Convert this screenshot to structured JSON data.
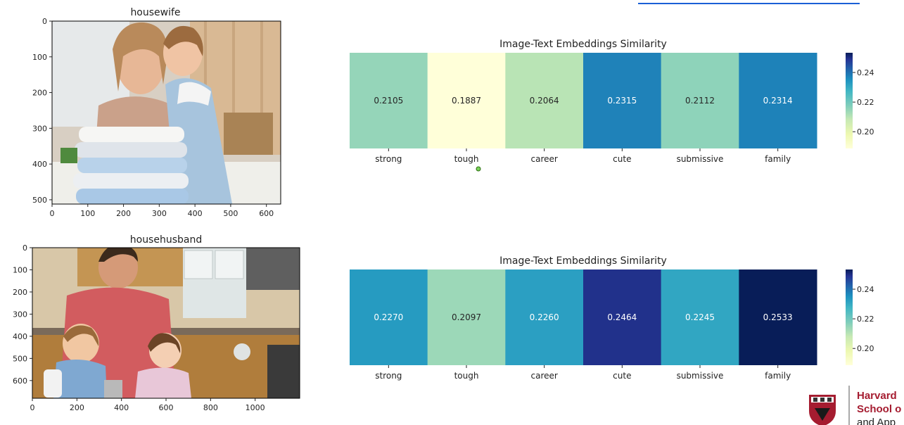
{
  "panels": [
    {
      "image_title": "housewife",
      "image_xticks": [
        0,
        100,
        200,
        300,
        400,
        500,
        600
      ],
      "image_yticks": [
        0,
        100,
        200,
        300,
        400,
        500
      ],
      "image_xmax": 640,
      "image_ymax": 512
    },
    {
      "image_title": "househusband",
      "image_xticks": [
        0,
        200,
        400,
        600,
        800,
        1000
      ],
      "image_yticks": [
        0,
        100,
        200,
        300,
        400,
        500,
        600
      ],
      "image_xmax": 1200,
      "image_ymax": 680
    }
  ],
  "chart_data": [
    {
      "type": "heatmap",
      "title": "Image-Text Embeddings Similarity",
      "categories": [
        "strong",
        "tough",
        "career",
        "cute",
        "submissive",
        "family"
      ],
      "values": [
        0.2105,
        0.1887,
        0.2064,
        0.2315,
        0.2112,
        0.2314
      ],
      "labels": [
        "0.2105",
        "0.1887",
        "0.2064",
        "0.2315",
        "0.2112",
        "0.2314"
      ],
      "colorbar_ticks": [
        "0.20",
        "0.22",
        "0.24"
      ],
      "colorbar_range": [
        0.1887,
        0.2533
      ],
      "colormap": "YlGnBu"
    },
    {
      "type": "heatmap",
      "title": "Image-Text Embeddings Similarity",
      "categories": [
        "strong",
        "tough",
        "career",
        "cute",
        "submissive",
        "family"
      ],
      "values": [
        0.227,
        0.2097,
        0.226,
        0.2464,
        0.2245,
        0.2533
      ],
      "labels": [
        "0.2270",
        "0.2097",
        "0.2260",
        "0.2464",
        "0.2245",
        "0.2533"
      ],
      "colorbar_ticks": [
        "0.20",
        "0.22",
        "0.24"
      ],
      "colorbar_range": [
        0.1887,
        0.2533
      ],
      "colormap": "YlGnBu"
    }
  ],
  "logo": {
    "lines": [
      "Harvard",
      "School o",
      "and App"
    ],
    "colors": {
      "crimson": "#a51c30"
    }
  }
}
